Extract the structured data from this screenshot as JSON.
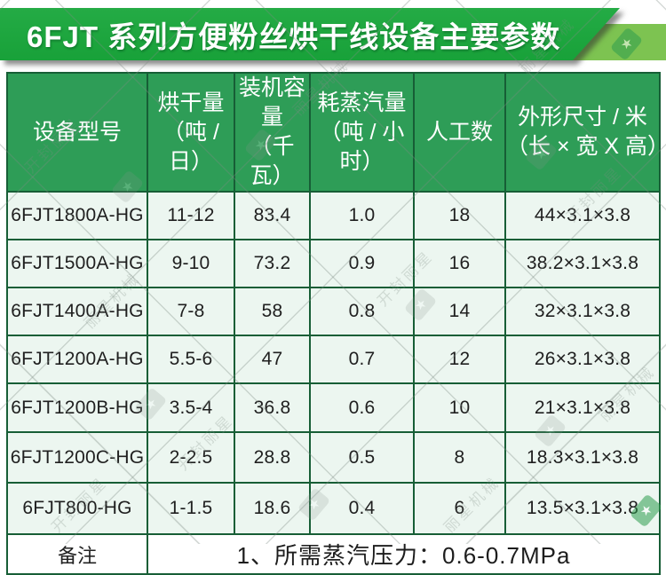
{
  "title": "6FJT 系列方便粉丝烘干线设备主要参数",
  "table": {
    "headers": [
      {
        "line1": "设备型号",
        "line2": ""
      },
      {
        "line1": "烘干量",
        "line2": "（吨 / 日）"
      },
      {
        "line1": "装机容量",
        "line2": "（千瓦）"
      },
      {
        "line1": "耗蒸汽量",
        "line2": "（吨 / 小时）"
      },
      {
        "line1": "人工数",
        "line2": ""
      },
      {
        "line1": "外形尺寸 / 米",
        "line2": "（长 × 宽 X 高）"
      }
    ],
    "rows": [
      [
        "6FJT1800A-HG",
        "11-12",
        "83.4",
        "1.0",
        "18",
        "44×3.1×3.8"
      ],
      [
        "6FJT1500A-HG",
        "9-10",
        "73.2",
        "0.9",
        "16",
        "38.2×3.1×3.8"
      ],
      [
        "6FJT1400A-HG",
        "7-8",
        "58",
        "0.8",
        "14",
        "32×3.1×3.8"
      ],
      [
        "6FJT1200A-HG",
        "5.5-6",
        "47",
        "0.7",
        "12",
        "26×3.1×3.8"
      ],
      [
        "6FJT1200B-HG",
        "3.5-4",
        "36.8",
        "0.6",
        "10",
        "21×3.1×3.8"
      ],
      [
        "6FJT1200C-HG",
        "2-2.5",
        "28.8",
        "0.5",
        "8",
        "18.3×3.1×3.8"
      ],
      [
        "6FJT800-HG",
        "1-1.5",
        "18.6",
        "0.4",
        "6",
        "13.5×3.1×3.8"
      ]
    ],
    "footer": {
      "label": "备注",
      "note": "1、所需蒸汽压力：0.6-0.7MPa"
    }
  },
  "watermark": {
    "texts": [
      "开封丽星",
      "丽星机械"
    ]
  },
  "colors": {
    "banner_green": "#1da440",
    "accent_strip_green": "#7dc351",
    "header_green": "#2e9d57",
    "border_green": "#175e36",
    "row_bg": "#ecf6f0",
    "title_text": "#ffffff"
  }
}
